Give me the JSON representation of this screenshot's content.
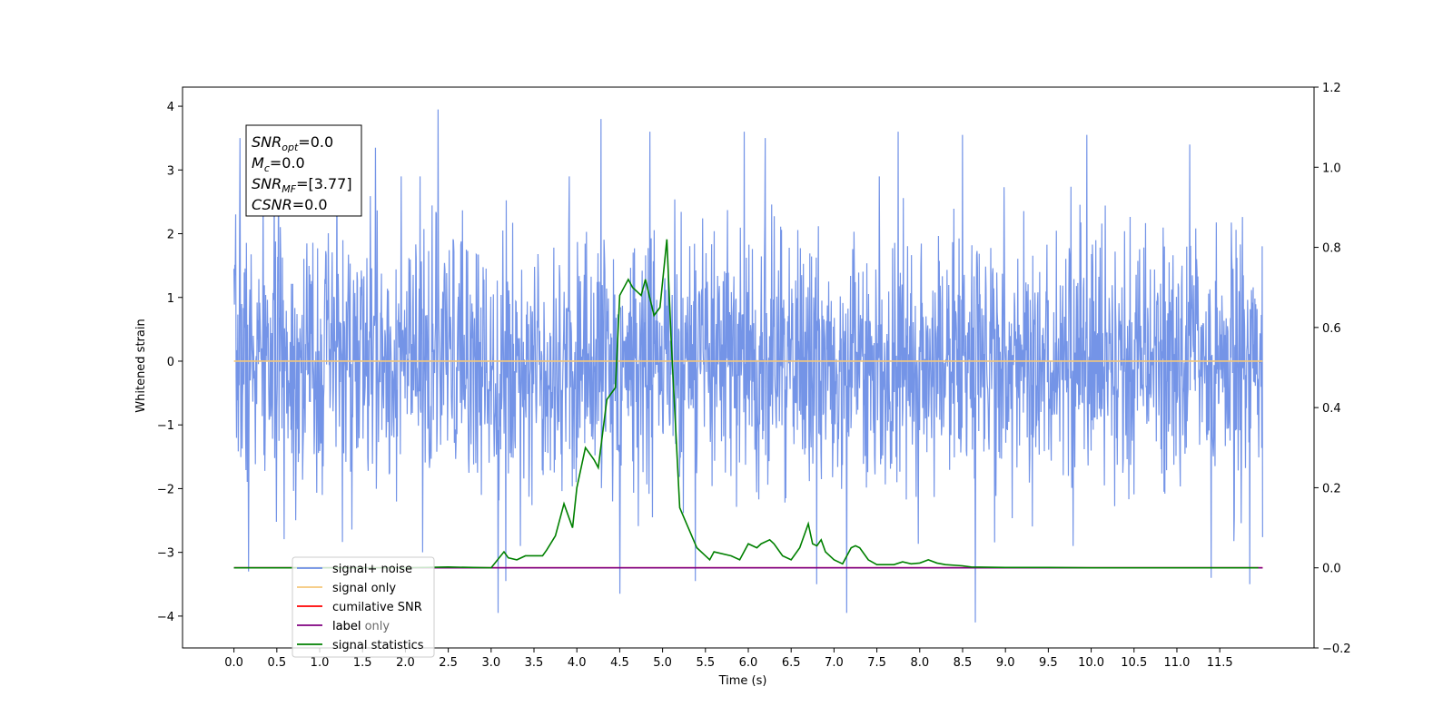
{
  "chart_data": {
    "type": "line",
    "title": "",
    "xlabel": "Time (s)",
    "ylabel": "Whitened strain",
    "xlim": [
      -0.6,
      12.6
    ],
    "ylim": [
      -4.5,
      4.3
    ],
    "y2lim": [
      -0.2,
      1.2
    ],
    "grid": false,
    "legend_placement": "lower-left",
    "x_ticks": [
      "0.0",
      "0.5",
      "1.0",
      "1.5",
      "2.0",
      "2.5",
      "3.0",
      "3.5",
      "4.0",
      "4.5",
      "5.0",
      "5.5",
      "6.0",
      "6.5",
      "7.0",
      "7.5",
      "8.0",
      "8.5",
      "9.0",
      "9.5",
      "10.0",
      "10.5",
      "11.0",
      "11.5"
    ],
    "y_ticks": [
      -4,
      -3,
      -2,
      -1,
      0,
      1,
      2,
      3,
      4
    ],
    "y2_ticks": [
      -0.2,
      0.0,
      0.2,
      0.4,
      0.6,
      0.8,
      1.0,
      1.2
    ],
    "y_tick_labels": [
      "−4",
      "−3",
      "−2",
      "−1",
      "0",
      "1",
      "2",
      "3",
      "4"
    ],
    "y2_tick_labels": [
      "−0.2",
      "0.0",
      "0.2",
      "0.4",
      "0.6",
      "0.8",
      "1.0",
      "1.2"
    ],
    "noise": {
      "x_range": [
        0.0,
        12.0
      ],
      "samples": 2400,
      "seed": 7,
      "sigma": 1.0,
      "spikes": [
        {
          "x": 0.07,
          "y": 3.5
        },
        {
          "x": 0.17,
          "y": -3.3
        },
        {
          "x": 0.52,
          "y": 3.4
        },
        {
          "x": 1.2,
          "y": 3.2
        },
        {
          "x": 1.65,
          "y": 3.35
        },
        {
          "x": 2.38,
          "y": 3.95
        },
        {
          "x": 2.2,
          "y": -3.0
        },
        {
          "x": 3.08,
          "y": -3.95
        },
        {
          "x": 3.17,
          "y": -3.45
        },
        {
          "x": 4.28,
          "y": 3.8
        },
        {
          "x": 4.5,
          "y": -3.65
        },
        {
          "x": 4.85,
          "y": 3.6
        },
        {
          "x": 5.38,
          "y": -3.45
        },
        {
          "x": 5.95,
          "y": 3.6
        },
        {
          "x": 6.2,
          "y": 3.5
        },
        {
          "x": 6.8,
          "y": -3.5
        },
        {
          "x": 7.15,
          "y": -3.95
        },
        {
          "x": 7.75,
          "y": 3.6
        },
        {
          "x": 8.5,
          "y": 3.55
        },
        {
          "x": 8.65,
          "y": -4.1
        },
        {
          "x": 9.95,
          "y": 3.55
        },
        {
          "x": 11.15,
          "y": 3.4
        },
        {
          "x": 11.4,
          "y": -3.4
        },
        {
          "x": 11.85,
          "y": -3.5
        }
      ]
    },
    "series": [
      {
        "name": "signal+ noise",
        "color": "#6d8ee6",
        "y_axis": "left",
        "x": [],
        "y": []
      },
      {
        "name": "signal only",
        "color": "#f4c77a",
        "y_axis": "left",
        "x": [
          0.0,
          12.0
        ],
        "y": [
          0.0,
          0.0
        ]
      },
      {
        "name": "cumilative SNR",
        "color": "#ff0000",
        "y_axis": "right",
        "x": [
          0.0,
          12.0
        ],
        "y": [
          0.0,
          0.0
        ]
      },
      {
        "name": "label",
        "color": "#800080",
        "y_axis": "right",
        "x": [
          0.0,
          12.0
        ],
        "y": [
          0.0,
          0.0
        ]
      },
      {
        "name": "signal statistics",
        "color": "#008000",
        "y_axis": "right",
        "x": [
          0.0,
          0.5,
          1.0,
          1.5,
          2.0,
          2.5,
          3.0,
          3.15,
          3.2,
          3.3,
          3.4,
          3.5,
          3.6,
          3.65,
          3.75,
          3.85,
          3.95,
          4.0,
          4.1,
          4.2,
          4.25,
          4.35,
          4.45,
          4.5,
          4.6,
          4.65,
          4.75,
          4.8,
          4.9,
          4.97,
          5.05,
          5.1,
          5.2,
          5.3,
          5.4,
          5.5,
          5.55,
          5.6,
          5.8,
          5.9,
          6.0,
          6.1,
          6.15,
          6.25,
          6.3,
          6.4,
          6.5,
          6.6,
          6.7,
          6.75,
          6.8,
          6.85,
          6.9,
          7.0,
          7.1,
          7.2,
          7.25,
          7.3,
          7.4,
          7.5,
          7.7,
          7.8,
          7.9,
          8.0,
          8.1,
          8.2,
          8.3,
          8.5,
          8.6,
          9.0,
          9.5,
          10.0,
          10.5,
          11.0,
          11.5,
          11.95
        ],
        "y": [
          0.0,
          0.0,
          0.0,
          0.0,
          0.0,
          0.002,
          0.0,
          0.04,
          0.025,
          0.02,
          0.03,
          0.03,
          0.03,
          0.045,
          0.08,
          0.16,
          0.1,
          0.2,
          0.3,
          0.27,
          0.25,
          0.42,
          0.45,
          0.68,
          0.72,
          0.7,
          0.68,
          0.72,
          0.63,
          0.65,
          0.82,
          0.57,
          0.15,
          0.1,
          0.05,
          0.03,
          0.02,
          0.04,
          0.03,
          0.02,
          0.06,
          0.05,
          0.06,
          0.07,
          0.06,
          0.03,
          0.02,
          0.05,
          0.11,
          0.06,
          0.055,
          0.07,
          0.04,
          0.02,
          0.01,
          0.05,
          0.055,
          0.05,
          0.02,
          0.008,
          0.008,
          0.015,
          0.01,
          0.012,
          0.02,
          0.012,
          0.008,
          0.005,
          0.002,
          0.001,
          0.001,
          0.0,
          0.0,
          0.0,
          0.0,
          0.0
        ]
      }
    ],
    "annotation": [
      {
        "label": "SNR",
        "subscript": "opt",
        "value": "=0.0"
      },
      {
        "label": "M",
        "subscript": "c",
        "value": "=0.0"
      },
      {
        "label": "SNR",
        "subscript": "MF",
        "value": "=[3.77]"
      },
      {
        "label": "CSNR",
        "subscript": "",
        "value": "=0.0"
      }
    ],
    "legend": [
      "signal+ noise",
      "signal only",
      "cumilative SNR",
      "label",
      "signal statistics"
    ],
    "hidden_legend_text": [
      "label only"
    ]
  }
}
